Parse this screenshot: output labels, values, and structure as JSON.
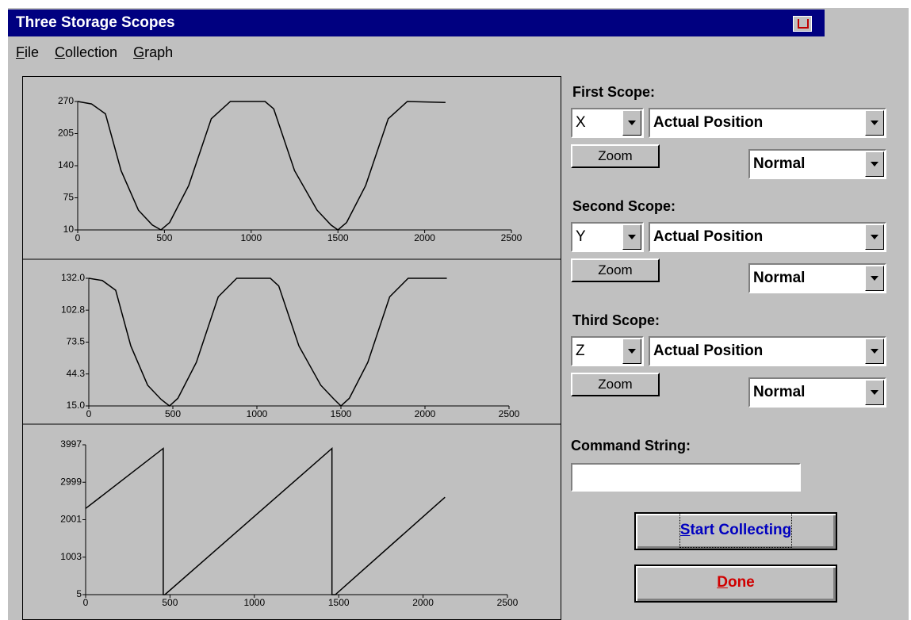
{
  "window": {
    "title": "Three Storage Scopes"
  },
  "menu": [
    "File",
    "Collection",
    "Graph"
  ],
  "scopes": [
    {
      "label": "First Scope:",
      "axis": "X",
      "signal": "Actual Position",
      "zoom": "Zoom",
      "mode": "Normal"
    },
    {
      "label": "Second Scope:",
      "axis": "Y",
      "signal": "Actual Position",
      "zoom": "Zoom",
      "mode": "Normal"
    },
    {
      "label": "Third Scope:",
      "axis": "Z",
      "signal": "Actual Position",
      "zoom": "Zoom",
      "mode": "Normal"
    }
  ],
  "command_string": {
    "label": "Command String:"
  },
  "buttons": [
    "Start Collecting",
    "Done"
  ],
  "chart_data": [
    {
      "type": "line",
      "x": [
        0,
        80,
        160,
        250,
        350,
        430,
        480,
        530,
        640,
        770,
        880,
        1080,
        1130,
        1250,
        1380,
        1460,
        1500,
        1550,
        1660,
        1790,
        1900,
        2120
      ],
      "values": [
        270,
        265,
        245,
        130,
        50,
        20,
        10,
        25,
        100,
        235,
        270,
        270,
        255,
        130,
        50,
        20,
        10,
        25,
        100,
        235,
        270,
        268
      ],
      "color": "#000000",
      "xlim": [
        0,
        2500
      ],
      "xticks": [
        0,
        500,
        1000,
        1500,
        2000,
        2500
      ],
      "ylim": [
        10,
        270
      ],
      "yticks": [
        10,
        75,
        140,
        205,
        270
      ]
    },
    {
      "type": "line",
      "x": [
        0,
        80,
        160,
        250,
        350,
        430,
        480,
        530,
        640,
        770,
        880,
        1080,
        1130,
        1250,
        1380,
        1460,
        1500,
        1550,
        1660,
        1790,
        1900,
        2130
      ],
      "values": [
        132,
        130,
        121,
        70,
        34,
        21,
        15,
        22,
        55,
        115,
        132,
        132,
        125,
        70,
        34,
        21,
        15,
        22,
        55,
        115,
        132,
        132
      ],
      "color": "#000000",
      "xlim": [
        0,
        2500
      ],
      "xticks": [
        0,
        500,
        1000,
        1500,
        2000,
        2500
      ],
      "ylim": [
        15,
        132
      ],
      "yticks": [
        {
          "value": 15,
          "label": "15.0"
        },
        44.3,
        73.5,
        102.8,
        {
          "value": 132,
          "label": "132.0"
        }
      ]
    },
    {
      "type": "line",
      "x": [
        0,
        460,
        460,
        470,
        1460,
        1460,
        1480,
        2130
      ],
      "values": [
        2300,
        3900,
        5,
        5,
        3900,
        5,
        5,
        2600
      ],
      "color": "#000000",
      "xlim": [
        0,
        2500
      ],
      "xticks": [
        0,
        500,
        1000,
        1500,
        2000,
        2500
      ],
      "ylim": [
        5,
        3997
      ],
      "yticks": [
        5,
        1003,
        2001,
        2999,
        3997
      ]
    }
  ]
}
